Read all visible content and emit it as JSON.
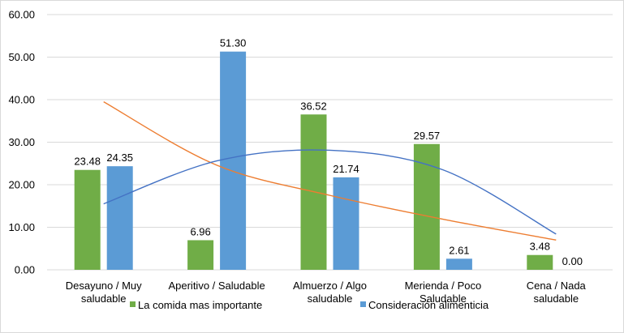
{
  "chart_data": {
    "type": "bar",
    "categories": [
      [
        "Desayuno / Muy",
        "saludable"
      ],
      [
        "Aperitivo / Saludable"
      ],
      [
        "Almuerzo / Algo",
        "saludable"
      ],
      [
        "Merienda / Poco",
        "Saludable"
      ],
      [
        "Cena / Nada",
        "saludable"
      ]
    ],
    "series": [
      {
        "name": "La comida mas importante",
        "color": "#70AD47",
        "values": [
          23.48,
          6.96,
          36.52,
          29.57,
          3.48
        ],
        "labels": [
          "23.48",
          "6.96",
          "36.52",
          "29.57",
          "3.48"
        ]
      },
      {
        "name": "Consideración alimenticia",
        "color": "#5B9BD5",
        "values": [
          24.35,
          51.3,
          21.74,
          2.61,
          0.0
        ],
        "labels": [
          "24.35",
          "51.30",
          "21.74",
          "2.61",
          "0.00"
        ]
      }
    ],
    "trendlines": [
      {
        "series": "La comida mas importante",
        "color": "#ED7D31",
        "points": [
          39.5,
          24.6,
          17.5,
          11.9,
          7.0
        ]
      },
      {
        "series": "Consideración alimenticia",
        "color": "#4472C4",
        "points": [
          15.5,
          25.6,
          28.1,
          23.5,
          8.4
        ]
      }
    ],
    "ylim": [
      0,
      60
    ],
    "yticks": [
      "0.00",
      "10.00",
      "20.00",
      "30.00",
      "40.00",
      "50.00",
      "60.00"
    ],
    "ytick_values": [
      0,
      10,
      20,
      30,
      40,
      50,
      60
    ],
    "grid": true,
    "legend": "bottom",
    "title": "",
    "xlabel": "",
    "ylabel": ""
  }
}
